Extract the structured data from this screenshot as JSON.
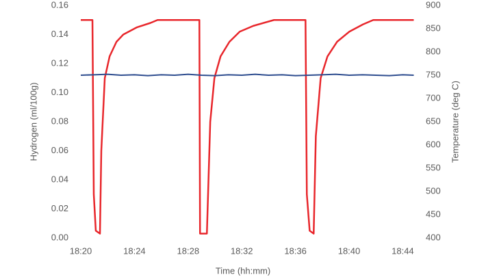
{
  "chart_data": {
    "type": "line",
    "x_label": "Time (hh:mm)",
    "y_label": "Hydrogen (ml/100g)",
    "y2_label": "Temperature (deg C)",
    "xlim": [
      1100,
      1125
    ],
    "xticks": [
      {
        "value": 1100,
        "label": "18:20"
      },
      {
        "value": 1104,
        "label": "18:24"
      },
      {
        "value": 1108,
        "label": "18:28"
      },
      {
        "value": 1112,
        "label": "18:32"
      },
      {
        "value": 1116,
        "label": "18:36"
      },
      {
        "value": 1120,
        "label": "18:40"
      },
      {
        "value": 1124,
        "label": "18:44"
      }
    ],
    "ylim": [
      0,
      0.16
    ],
    "yticks": [
      {
        "value": 0,
        "label": "0.00"
      },
      {
        "value": 0.02,
        "label": "0.02"
      },
      {
        "value": 0.04,
        "label": "0.04"
      },
      {
        "value": 0.06,
        "label": "0.06"
      },
      {
        "value": 0.08,
        "label": "0.08"
      },
      {
        "value": 0.1,
        "label": "0.10"
      },
      {
        "value": 0.12,
        "label": "0.12"
      },
      {
        "value": 0.14,
        "label": "0.14"
      },
      {
        "value": 0.16,
        "label": "0.16"
      }
    ],
    "y2lim": [
      400,
      900
    ],
    "y2ticks": [
      400,
      450,
      500,
      550,
      600,
      650,
      700,
      750,
      800,
      850,
      900
    ],
    "grid": false,
    "series": [
      {
        "color": "#e8262b",
        "x": [
          1100,
          1100.87,
          1100.97,
          1101.12,
          1101.43,
          1101.53,
          1101.79,
          1102.15,
          1102.66,
          1103.17,
          1104.19,
          1105.2,
          1105.72,
          1108.84,
          1108.89,
          1109.4,
          1109.65,
          1109.96,
          1110.42,
          1111.08,
          1111.85,
          1112.87,
          1114.4,
          1116.75,
          1116.85,
          1117.06,
          1117.36,
          1117.52,
          1117.88,
          1118.39,
          1119.1,
          1120.02,
          1121.04,
          1121.8,
          1124.82
        ],
        "values": [
          0.15,
          0.15,
          0.03,
          0.005,
          0.003,
          0.06,
          0.11,
          0.125,
          0.135,
          0.14,
          0.145,
          0.148,
          0.15,
          0.15,
          0.003,
          0.003,
          0.08,
          0.11,
          0.125,
          0.135,
          0.142,
          0.146,
          0.15,
          0.15,
          0.03,
          0.005,
          0.003,
          0.07,
          0.11,
          0.125,
          0.135,
          0.142,
          0.147,
          0.15,
          0.15
        ]
      },
      {
        "color": "#2e4d8f",
        "axis": "y2",
        "x": [
          1100,
          1101,
          1102,
          1103,
          1104,
          1105,
          1106,
          1107,
          1108,
          1109,
          1110,
          1111,
          1112,
          1113,
          1114,
          1115,
          1116,
          1117,
          1118,
          1119,
          1120,
          1121,
          1122,
          1123,
          1124,
          1124.82
        ],
        "values": [
          750,
          751,
          752,
          750,
          751,
          749,
          751,
          750,
          752,
          750,
          749,
          751,
          750,
          752,
          750,
          751,
          749,
          750,
          751,
          752,
          750,
          751,
          750,
          749,
          751,
          750
        ]
      }
    ]
  }
}
